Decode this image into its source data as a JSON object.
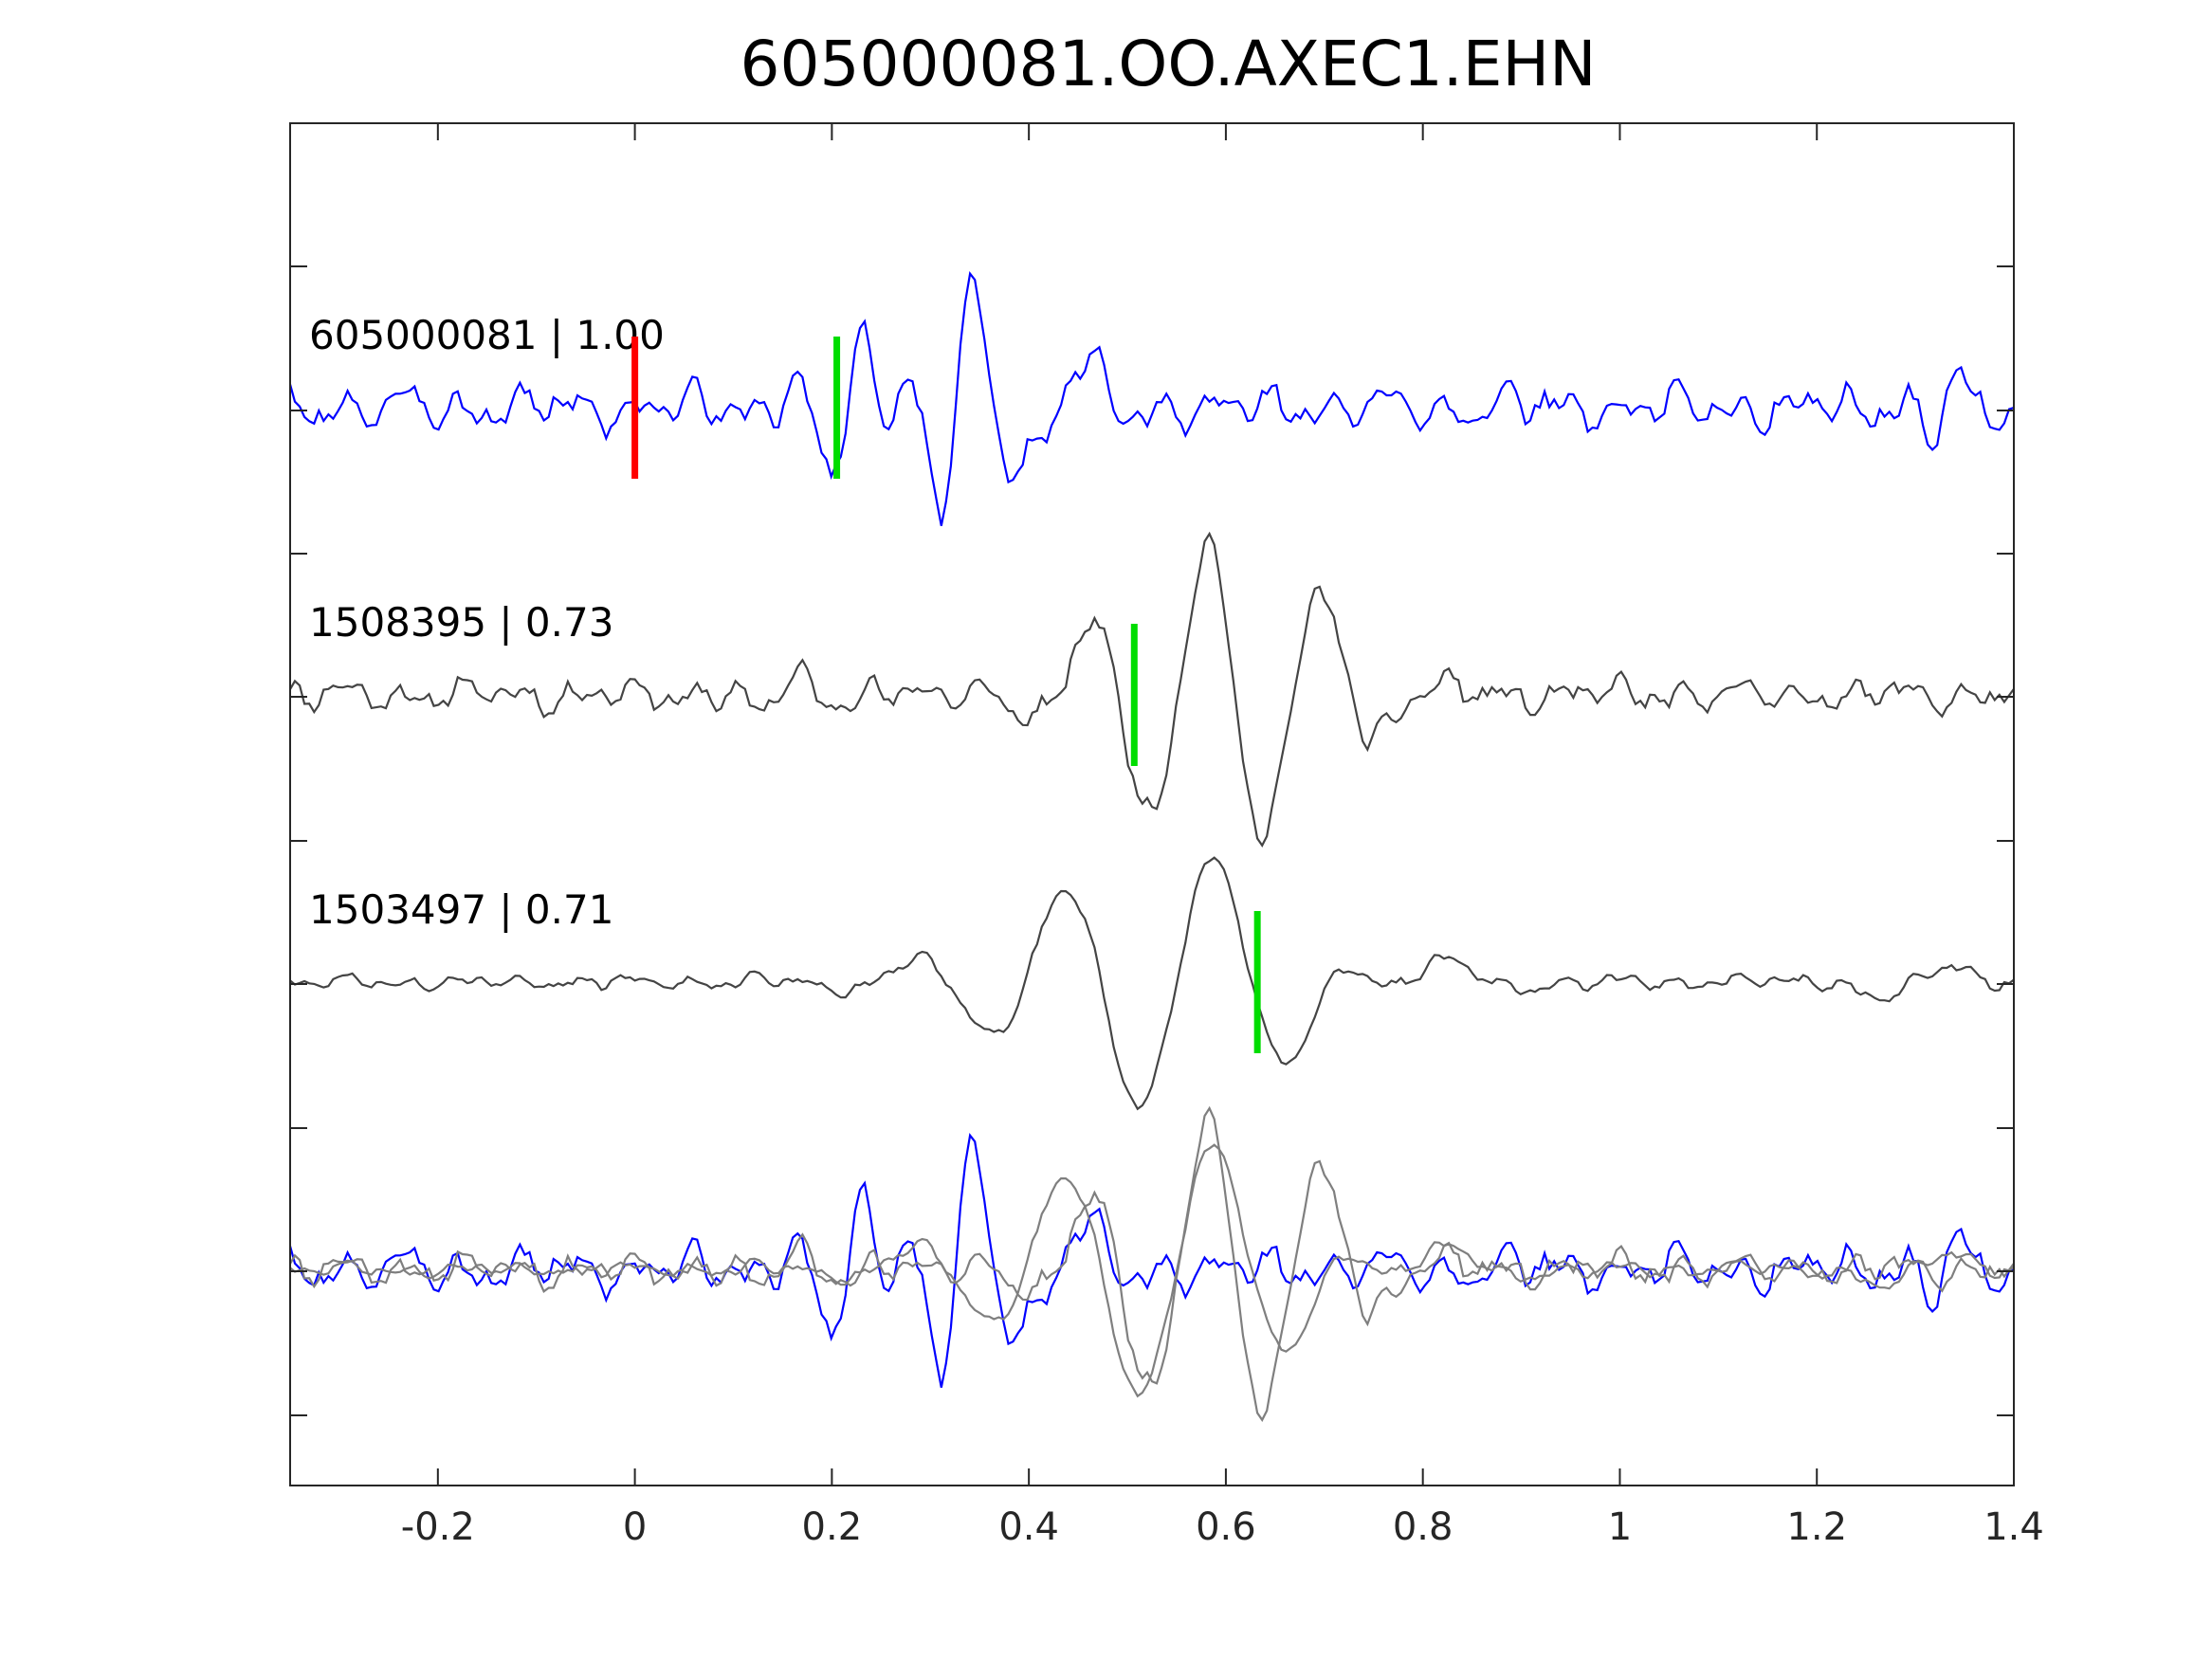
{
  "chart_data": {
    "type": "line",
    "title": "605000081.OO.AXEC1.EHN",
    "xlabel": "",
    "ylabel": "",
    "xlim": [
      -0.35,
      1.4
    ],
    "x_ticks": [
      -0.2,
      0,
      0.2,
      0.4,
      0.6,
      0.8,
      1,
      1.2,
      1.4
    ],
    "x_tick_labels": [
      "-0.2",
      "0",
      "0.2",
      "0.4",
      "0.6",
      "0.8",
      "1",
      "1.2",
      "1.4"
    ],
    "grid": false,
    "reference_pick": {
      "x": 0.0,
      "color": "#ff0000"
    },
    "pick_color": "#00dd00",
    "colors": {
      "main": "#0000ff",
      "dark": "#444444",
      "overlay": "#7f7f7f"
    },
    "traces": [
      {
        "name": "605000081",
        "label": "605000081 | 1.00",
        "color": "#0000ff",
        "pick": 0.205,
        "noise_amp": 0.28,
        "seed": 3,
        "wavelets": [
          {
            "t": 0.215,
            "amp": 0.9,
            "f": 13,
            "w": 0.035
          },
          {
            "t": 0.325,
            "amp": 1.35,
            "f": 14,
            "w": 0.04
          },
          {
            "t": 0.43,
            "amp": 0.6,
            "f": 9,
            "w": 0.05
          },
          {
            "t": 1.33,
            "amp": 0.35,
            "f": 15,
            "w": 0.03
          }
        ]
      },
      {
        "name": "1508395",
        "label": "1508395 | 0.73",
        "color": "#444444",
        "pick": 0.507,
        "noise_amp": 0.22,
        "seed": 11,
        "wavelets": [
          {
            "t": 0.555,
            "amp": 1.35,
            "f": 8,
            "w": 0.09
          },
          {
            "t": 0.66,
            "amp": 0.9,
            "f": 8,
            "w": 0.07
          },
          {
            "t": 0.145,
            "amp": 0.3,
            "f": 12,
            "w": 0.03
          }
        ]
      },
      {
        "name": "1503497",
        "label": "1503497 | 0.71",
        "color": "#444444",
        "pick": 0.632,
        "noise_amp": 0.1,
        "seed": 27,
        "wavelets": [
          {
            "t": 0.55,
            "amp": 1.4,
            "f": 6.5,
            "w": 0.14
          },
          {
            "t": 0.78,
            "amp": 0.55,
            "f": 6,
            "w": 0.07
          },
          {
            "t": 1.3,
            "amp": 0.25,
            "f": 6,
            "w": 0.05
          }
        ]
      }
    ]
  }
}
